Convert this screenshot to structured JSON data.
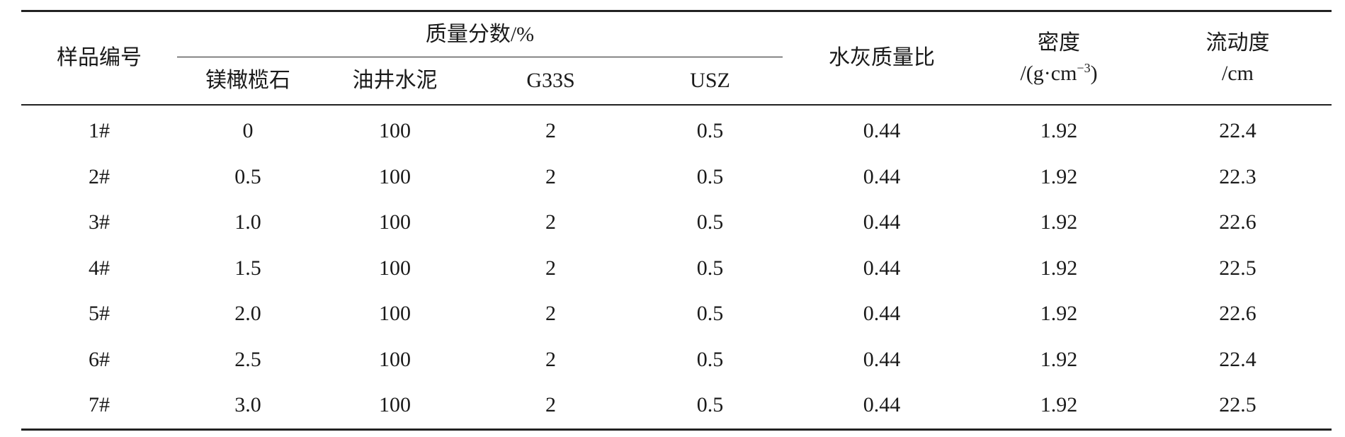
{
  "table": {
    "headers": {
      "sample_id": "样品编号",
      "mass_fraction_group": "质量分数/%",
      "sub": [
        "镁橄榄石",
        "油井水泥",
        "G33S",
        "USZ"
      ],
      "water_cement_ratio": "水灰质量比",
      "density_line1": "密度",
      "density_line2_prefix": "/(g·cm",
      "density_sup": "−3",
      "density_line2_suffix": ")",
      "fluidity_line1": "流动度",
      "fluidity_line2": "/cm"
    },
    "rows": [
      [
        "1#",
        "0",
        "100",
        "2",
        "0.5",
        "0.44",
        "1.92",
        "22.4"
      ],
      [
        "2#",
        "0.5",
        "100",
        "2",
        "0.5",
        "0.44",
        "1.92",
        "22.3"
      ],
      [
        "3#",
        "1.0",
        "100",
        "2",
        "0.5",
        "0.44",
        "1.92",
        "22.6"
      ],
      [
        "4#",
        "1.5",
        "100",
        "2",
        "0.5",
        "0.44",
        "1.92",
        "22.5"
      ],
      [
        "5#",
        "2.0",
        "100",
        "2",
        "0.5",
        "0.44",
        "1.92",
        "22.6"
      ],
      [
        "6#",
        "2.5",
        "100",
        "2",
        "0.5",
        "0.44",
        "1.92",
        "22.4"
      ],
      [
        "7#",
        "3.0",
        "100",
        "2",
        "0.5",
        "0.44",
        "1.92",
        "22.5"
      ]
    ]
  }
}
